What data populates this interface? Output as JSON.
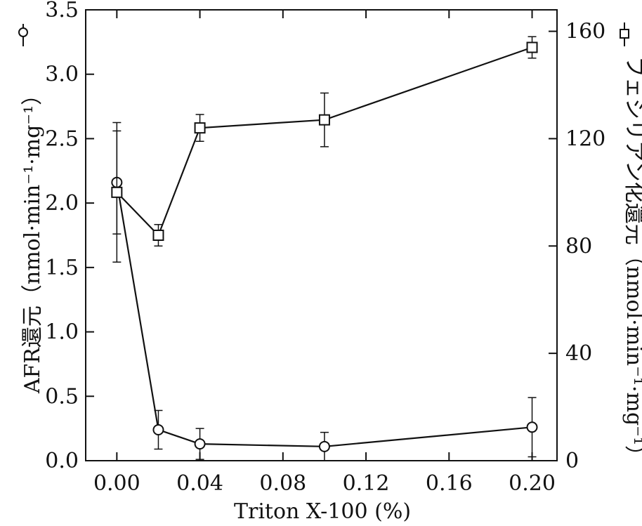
{
  "chart_data": {
    "type": "line",
    "xlabel": "Triton X-100 (%)",
    "ylabel_left": "AFR還元（nmol·min⁻¹·mg⁻¹）",
    "ylabel_right": "フェシリアン化還元（nmol·min⁻¹·mg⁻¹）",
    "xlim": [
      -0.015,
      0.212
    ],
    "ylim_left": [
      0,
      3.5
    ],
    "ylim_right": [
      0,
      168
    ],
    "x_ticks": [
      "0.00",
      "0.04",
      "0.08",
      "0.12",
      "0.16",
      "0.20"
    ],
    "y_left_ticks": [
      "0.0",
      "0.5",
      "1.0",
      "1.5",
      "2.0",
      "2.5",
      "3.0",
      "3.5"
    ],
    "y_right_ticks": [
      "0",
      "40",
      "80",
      "120",
      "160"
    ],
    "series": [
      {
        "marker": "circle",
        "axis": "left",
        "x": [
          0.0,
          0.02,
          0.04,
          0.1,
          0.2
        ],
        "y": [
          2.16,
          0.24,
          0.13,
          0.11,
          0.26
        ],
        "err": [
          0.4,
          0.15,
          0.12,
          0.11,
          0.23
        ]
      },
      {
        "marker": "square",
        "axis": "right",
        "x": [
          0.0,
          0.02,
          0.04,
          0.1,
          0.2
        ],
        "y": [
          100,
          84,
          124,
          127,
          154
        ],
        "err": [
          26,
          4,
          5,
          10,
          4
        ]
      }
    ],
    "grid": false
  }
}
